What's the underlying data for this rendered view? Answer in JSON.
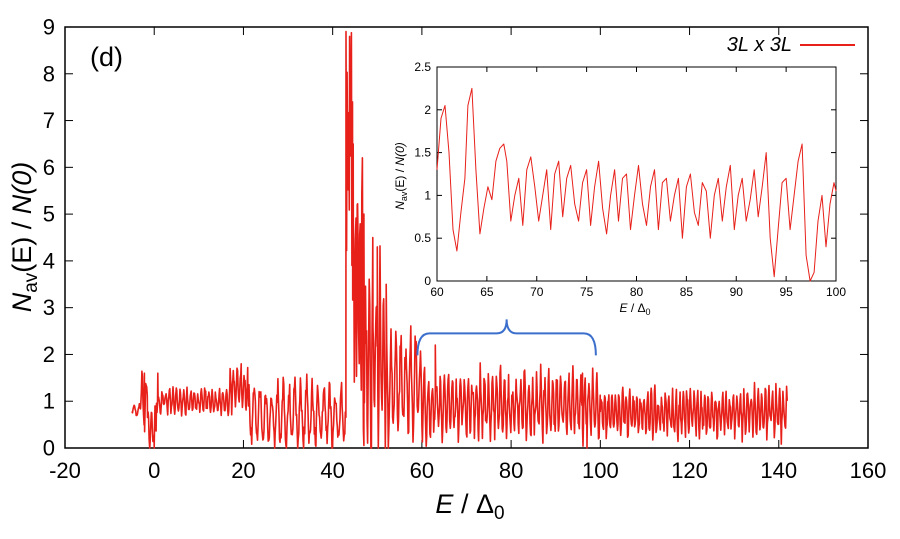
{
  "chart_data": [
    {
      "id": "main",
      "type": "line",
      "panel_label": "(d)",
      "xlabel": {
        "italic": "E",
        "rest": " / Δ",
        "sub": "0"
      },
      "ylabel": {
        "italic_N": "N",
        "sub": "av",
        "middle": "(E) / ",
        "italic_end": "N(0)"
      },
      "xlim": [
        -20,
        160
      ],
      "ylim": [
        0,
        9
      ],
      "xticks": [
        -20,
        0,
        20,
        40,
        60,
        80,
        100,
        120,
        140,
        160
      ],
      "yticks": [
        0,
        1,
        2,
        3,
        4,
        5,
        6,
        7,
        8,
        9
      ],
      "legend": {
        "label": "3L x 3L",
        "position": "top-right"
      },
      "series": [
        {
          "name": "3L x 3L",
          "color": "#e8201a",
          "segments": [
            {
              "x0": -5,
              "x1": -3,
              "base": 0.8,
              "amp": 0.1,
              "period": 1.2
            },
            {
              "x0": -3,
              "x1": -1.5,
              "base": 1.0,
              "amp": 0.5,
              "period": 1.0
            },
            {
              "x0": -1.5,
              "x1": 0.5,
              "base": 0.4,
              "amp": 0.45,
              "period": 0.8
            },
            {
              "x0": 0.5,
              "x1": 17,
              "base": 1.0,
              "amp": 0.25,
              "period": 0.8
            },
            {
              "x0": 17,
              "x1": 21,
              "base": 1.3,
              "amp": 0.4,
              "period": 0.8
            },
            {
              "x0": 21,
              "x1": 43,
              "base": 0.7,
              "amp": 0.6,
              "period": 1.3
            },
            {
              "x0": 43,
              "x1": 44.5,
              "base": 6.5,
              "amp": 2.3,
              "period": 0.3
            },
            {
              "x0": 44.5,
              "x1": 47,
              "base": 3.5,
              "amp": 2.5,
              "period": 0.5
            },
            {
              "x0": 47,
              "x1": 52,
              "base": 2.0,
              "amp": 1.8,
              "period": 0.8
            },
            {
              "x0": 52,
              "x1": 60,
              "base": 1.3,
              "amp": 1.0,
              "period": 1.1
            },
            {
              "x0": 60,
              "x1": 100,
              "base": 0.9,
              "amp": 0.6,
              "period": 0.9
            },
            {
              "x0": 100,
              "x1": 142,
              "base": 0.75,
              "amp": 0.45,
              "period": 0.8
            }
          ],
          "peaks": [
            {
              "x": -2.2,
              "y": 1.6
            },
            {
              "x": -1,
              "y": 0.0
            },
            {
              "x": 0,
              "y": 0.0
            },
            {
              "x": 0.8,
              "y": 1.6
            },
            {
              "x": 19.5,
              "y": 1.8
            },
            {
              "x": 43.8,
              "y": 8.8
            },
            {
              "x": 44.6,
              "y": 6.5
            },
            {
              "x": 45.5,
              "y": 5.2
            },
            {
              "x": 47,
              "y": 5.0
            },
            {
              "x": 49,
              "y": 4.5
            },
            {
              "x": 50,
              "y": 4.3
            },
            {
              "x": 52,
              "y": 3.5
            },
            {
              "x": 63,
              "y": 2.2
            },
            {
              "x": 93,
              "y": 1.6
            },
            {
              "x": 96,
              "y": 1.6
            },
            {
              "x": 97,
              "y": 0.0
            }
          ]
        }
      ],
      "annotation": {
        "type": "brace",
        "from": 59,
        "to": 99,
        "level": 2.45,
        "color": "#3c6fcc"
      }
    },
    {
      "id": "inset",
      "type": "line",
      "xlabel": {
        "italic": "E",
        "rest": " / Δ",
        "sub": "0"
      },
      "ylabel": {
        "italic_N": "N",
        "sub": "av",
        "middle": "(E) / ",
        "italic_end": "N(0)"
      },
      "xlim": [
        60,
        100
      ],
      "ylim": [
        0,
        2.5
      ],
      "xticks": [
        60,
        65,
        70,
        75,
        80,
        85,
        90,
        95,
        100
      ],
      "yticks": [
        0,
        0.5,
        1,
        1.5,
        2,
        2.5
      ],
      "series": [
        {
          "name": "3L x 3L",
          "color": "#e8201a",
          "points": [
            [
              60.0,
              1.3
            ],
            [
              60.4,
              1.9
            ],
            [
              60.8,
              2.05
            ],
            [
              61.2,
              1.5
            ],
            [
              61.6,
              0.6
            ],
            [
              62.0,
              0.35
            ],
            [
              62.4,
              0.8
            ],
            [
              62.8,
              1.2
            ],
            [
              63.1,
              2.05
            ],
            [
              63.5,
              2.25
            ],
            [
              63.9,
              1.3
            ],
            [
              64.3,
              0.55
            ],
            [
              64.7,
              0.85
            ],
            [
              65.1,
              1.1
            ],
            [
              65.5,
              0.95
            ],
            [
              65.9,
              1.4
            ],
            [
              66.3,
              1.55
            ],
            [
              66.7,
              1.6
            ],
            [
              67.0,
              1.4
            ],
            [
              67.4,
              0.7
            ],
            [
              67.8,
              1.0
            ],
            [
              68.2,
              1.2
            ],
            [
              68.6,
              0.65
            ],
            [
              69.0,
              1.3
            ],
            [
              69.4,
              1.45
            ],
            [
              69.8,
              1.1
            ],
            [
              70.2,
              0.7
            ],
            [
              70.6,
              1.0
            ],
            [
              71.0,
              1.3
            ],
            [
              71.4,
              0.6
            ],
            [
              71.8,
              1.25
            ],
            [
              72.2,
              1.4
            ],
            [
              72.6,
              0.75
            ],
            [
              73.0,
              1.2
            ],
            [
              73.4,
              1.35
            ],
            [
              73.8,
              0.9
            ],
            [
              74.2,
              0.7
            ],
            [
              74.6,
              1.15
            ],
            [
              75.0,
              1.3
            ],
            [
              75.4,
              0.65
            ],
            [
              75.8,
              1.1
            ],
            [
              76.2,
              1.4
            ],
            [
              76.6,
              0.85
            ],
            [
              77.0,
              0.55
            ],
            [
              77.4,
              1.0
            ],
            [
              77.8,
              1.3
            ],
            [
              78.2,
              0.7
            ],
            [
              78.6,
              1.2
            ],
            [
              79.0,
              1.25
            ],
            [
              79.4,
              0.6
            ],
            [
              79.8,
              1.0
            ],
            [
              80.2,
              1.35
            ],
            [
              80.6,
              0.9
            ],
            [
              81.0,
              0.65
            ],
            [
              81.4,
              1.1
            ],
            [
              81.8,
              1.3
            ],
            [
              82.2,
              0.6
            ],
            [
              82.6,
              1.15
            ],
            [
              83.0,
              1.2
            ],
            [
              83.4,
              0.7
            ],
            [
              83.8,
              1.0
            ],
            [
              84.2,
              1.2
            ],
            [
              84.6,
              0.5
            ],
            [
              85.0,
              1.1
            ],
            [
              85.4,
              1.25
            ],
            [
              85.8,
              0.8
            ],
            [
              86.2,
              0.65
            ],
            [
              86.6,
              1.15
            ],
            [
              87.0,
              1.05
            ],
            [
              87.4,
              0.5
            ],
            [
              87.8,
              1.0
            ],
            [
              88.2,
              1.2
            ],
            [
              88.6,
              0.7
            ],
            [
              89.0,
              1.1
            ],
            [
              89.4,
              1.35
            ],
            [
              89.8,
              0.6
            ],
            [
              90.2,
              1.0
            ],
            [
              90.6,
              1.2
            ],
            [
              91.0,
              0.7
            ],
            [
              91.4,
              0.95
            ],
            [
              91.8,
              1.3
            ],
            [
              92.2,
              0.75
            ],
            [
              92.6,
              1.1
            ],
            [
              93.0,
              1.5
            ],
            [
              93.4,
              0.5
            ],
            [
              93.8,
              0.05
            ],
            [
              94.2,
              0.6
            ],
            [
              94.6,
              1.15
            ],
            [
              95.0,
              1.2
            ],
            [
              95.4,
              0.6
            ],
            [
              95.8,
              1.0
            ],
            [
              96.2,
              1.4
            ],
            [
              96.6,
              1.6
            ],
            [
              97.0,
              0.3
            ],
            [
              97.4,
              0.0
            ],
            [
              97.8,
              0.1
            ],
            [
              98.2,
              0.7
            ],
            [
              98.6,
              1.0
            ],
            [
              99.0,
              0.4
            ],
            [
              99.4,
              0.9
            ],
            [
              99.8,
              1.15
            ],
            [
              100.0,
              1.05
            ]
          ]
        }
      ]
    }
  ]
}
